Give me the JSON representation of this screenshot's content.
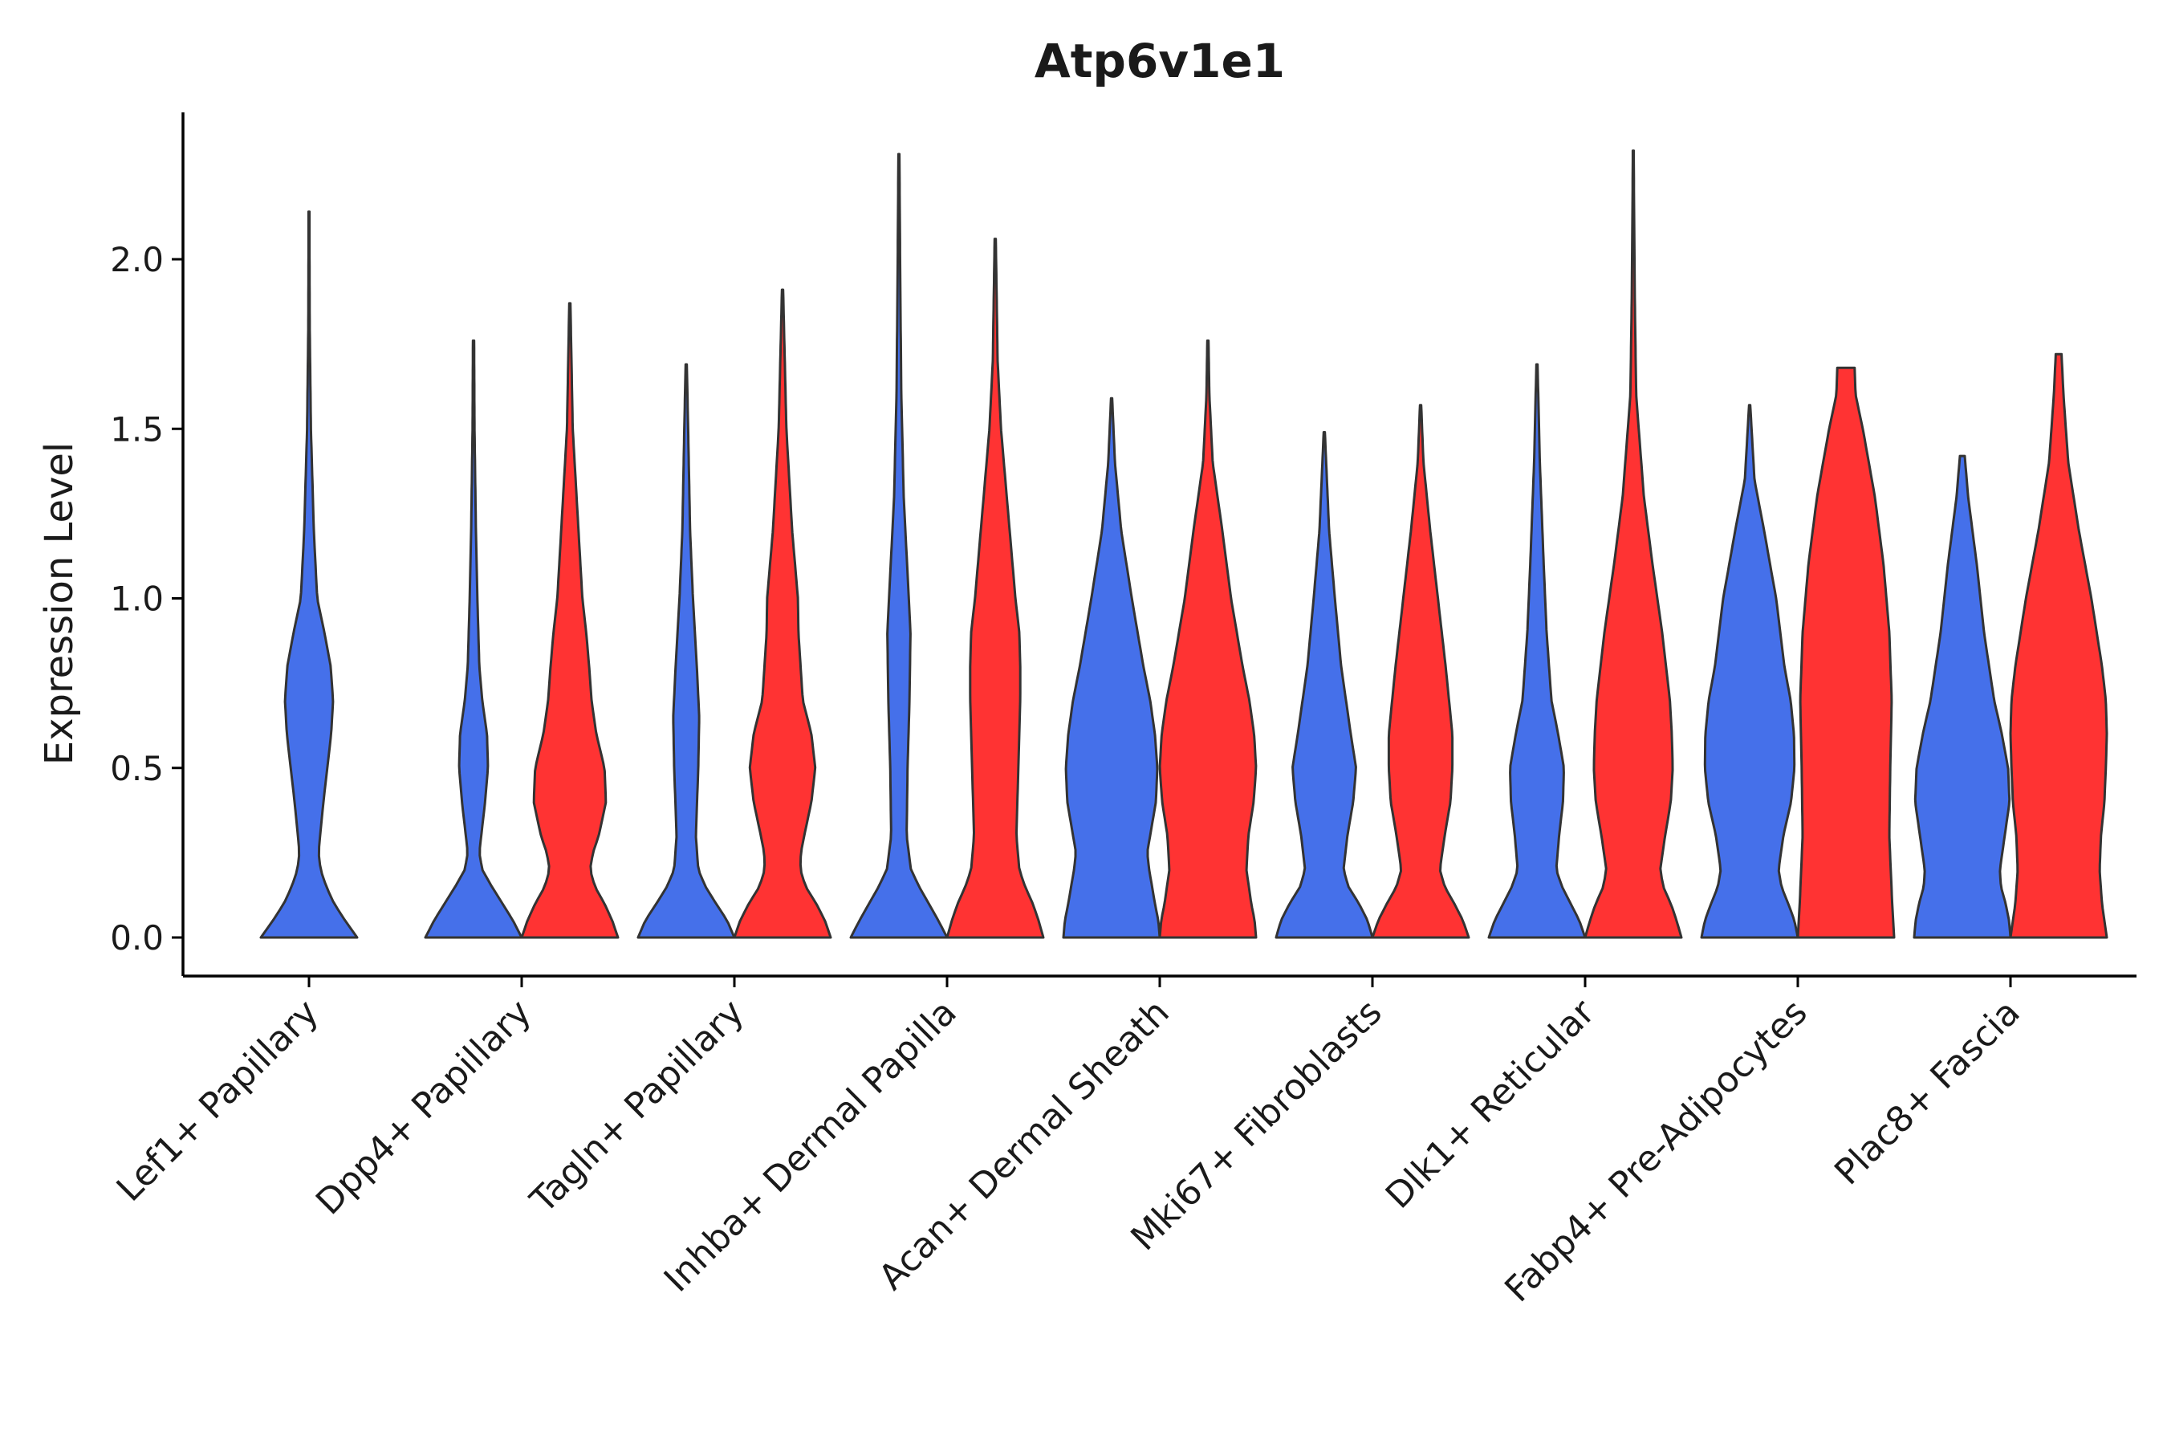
{
  "chart_data": {
    "type": "violin",
    "title": "Atp6v1e1",
    "xlabel": "",
    "ylabel": "Expression Level",
    "ylim": [
      -0.12,
      2.42
    ],
    "yticks": [
      "0.0",
      "0.5",
      "1.0",
      "1.5",
      "2.0"
    ],
    "ytick_values": [
      0.0,
      0.5,
      1.0,
      1.5,
      2.0
    ],
    "grid": false,
    "legend": "none",
    "colors": {
      "blue": "#4570EA",
      "red": "#FF3333",
      "outline": "#333333"
    },
    "categories": [
      "Lef1+ Papillary",
      "Dpp4+ Papillary",
      "Tagln+ Papillary",
      "Inhba+ Dermal Papilla",
      "Acan+ Dermal Sheath",
      "Mki67+ Fibroblasts",
      "Dlk1+ Reticular",
      "Fabp4+ Pre-Adipocytes",
      "Plac8+ Fascia"
    ],
    "violins": [
      {
        "category": 0,
        "color": "blue",
        "max": 2.14,
        "profile": [
          [
            0.0,
            1.0
          ],
          [
            0.05,
            0.75
          ],
          [
            0.1,
            0.52
          ],
          [
            0.15,
            0.36
          ],
          [
            0.2,
            0.24
          ],
          [
            0.25,
            0.2
          ],
          [
            0.3,
            0.23
          ],
          [
            0.4,
            0.3
          ],
          [
            0.5,
            0.38
          ],
          [
            0.6,
            0.46
          ],
          [
            0.7,
            0.5
          ],
          [
            0.8,
            0.45
          ],
          [
            0.9,
            0.32
          ],
          [
            1.0,
            0.17
          ],
          [
            1.2,
            0.1
          ],
          [
            1.5,
            0.04
          ],
          [
            1.8,
            0.015
          ],
          [
            2.14,
            0.008
          ]
        ]
      },
      {
        "category": 1,
        "color": "blue",
        "max": 1.76,
        "profile": [
          [
            0.0,
            1.0
          ],
          [
            0.05,
            0.82
          ],
          [
            0.1,
            0.6
          ],
          [
            0.15,
            0.38
          ],
          [
            0.2,
            0.18
          ],
          [
            0.25,
            0.12
          ],
          [
            0.3,
            0.16
          ],
          [
            0.4,
            0.24
          ],
          [
            0.5,
            0.3
          ],
          [
            0.6,
            0.28
          ],
          [
            0.7,
            0.18
          ],
          [
            0.8,
            0.12
          ],
          [
            1.0,
            0.08
          ],
          [
            1.2,
            0.05
          ],
          [
            1.5,
            0.02
          ],
          [
            1.76,
            0.012
          ]
        ]
      },
      {
        "category": 1,
        "color": "red",
        "max": 1.87,
        "profile": [
          [
            0.0,
            1.0
          ],
          [
            0.05,
            0.88
          ],
          [
            0.1,
            0.72
          ],
          [
            0.15,
            0.52
          ],
          [
            0.2,
            0.42
          ],
          [
            0.25,
            0.48
          ],
          [
            0.3,
            0.6
          ],
          [
            0.4,
            0.75
          ],
          [
            0.5,
            0.72
          ],
          [
            0.6,
            0.55
          ],
          [
            0.7,
            0.45
          ],
          [
            0.8,
            0.4
          ],
          [
            0.9,
            0.34
          ],
          [
            1.0,
            0.26
          ],
          [
            1.2,
            0.18
          ],
          [
            1.5,
            0.06
          ],
          [
            1.87,
            0.012
          ]
        ]
      },
      {
        "category": 2,
        "color": "blue",
        "max": 1.69,
        "profile": [
          [
            0.0,
            1.0
          ],
          [
            0.05,
            0.85
          ],
          [
            0.1,
            0.62
          ],
          [
            0.15,
            0.4
          ],
          [
            0.2,
            0.25
          ],
          [
            0.3,
            0.2
          ],
          [
            0.5,
            0.25
          ],
          [
            0.65,
            0.27
          ],
          [
            0.8,
            0.22
          ],
          [
            1.0,
            0.14
          ],
          [
            1.2,
            0.08
          ],
          [
            1.5,
            0.04
          ],
          [
            1.69,
            0.012
          ]
        ]
      },
      {
        "category": 2,
        "color": "red",
        "max": 1.91,
        "profile": [
          [
            0.0,
            1.0
          ],
          [
            0.05,
            0.88
          ],
          [
            0.1,
            0.7
          ],
          [
            0.15,
            0.48
          ],
          [
            0.2,
            0.37
          ],
          [
            0.25,
            0.38
          ],
          [
            0.3,
            0.45
          ],
          [
            0.4,
            0.6
          ],
          [
            0.5,
            0.68
          ],
          [
            0.6,
            0.6
          ],
          [
            0.7,
            0.42
          ],
          [
            0.9,
            0.33
          ],
          [
            1.0,
            0.32
          ],
          [
            1.2,
            0.2
          ],
          [
            1.5,
            0.08
          ],
          [
            1.91,
            0.012
          ]
        ]
      },
      {
        "category": 3,
        "color": "blue",
        "max": 2.31,
        "profile": [
          [
            0.0,
            1.0
          ],
          [
            0.05,
            0.82
          ],
          [
            0.1,
            0.62
          ],
          [
            0.15,
            0.42
          ],
          [
            0.2,
            0.25
          ],
          [
            0.3,
            0.16
          ],
          [
            0.5,
            0.18
          ],
          [
            0.7,
            0.22
          ],
          [
            0.9,
            0.24
          ],
          [
            1.1,
            0.17
          ],
          [
            1.3,
            0.1
          ],
          [
            1.6,
            0.05
          ],
          [
            1.9,
            0.03
          ],
          [
            2.31,
            0.01
          ]
        ]
      },
      {
        "category": 3,
        "color": "red",
        "max": 2.06,
        "profile": [
          [
            0.0,
            1.0
          ],
          [
            0.05,
            0.9
          ],
          [
            0.1,
            0.78
          ],
          [
            0.15,
            0.62
          ],
          [
            0.2,
            0.5
          ],
          [
            0.3,
            0.44
          ],
          [
            0.5,
            0.48
          ],
          [
            0.7,
            0.52
          ],
          [
            0.8,
            0.52
          ],
          [
            0.9,
            0.5
          ],
          [
            1.0,
            0.42
          ],
          [
            1.2,
            0.3
          ],
          [
            1.5,
            0.12
          ],
          [
            1.7,
            0.05
          ],
          [
            2.06,
            0.012
          ]
        ]
      },
      {
        "category": 4,
        "color": "blue",
        "max": 1.59,
        "profile": [
          [
            0.0,
            1.0
          ],
          [
            0.05,
            0.97
          ],
          [
            0.1,
            0.9
          ],
          [
            0.2,
            0.78
          ],
          [
            0.25,
            0.74
          ],
          [
            0.3,
            0.8
          ],
          [
            0.4,
            0.92
          ],
          [
            0.5,
            0.95
          ],
          [
            0.6,
            0.9
          ],
          [
            0.7,
            0.8
          ],
          [
            0.8,
            0.66
          ],
          [
            1.0,
            0.42
          ],
          [
            1.2,
            0.2
          ],
          [
            1.4,
            0.07
          ],
          [
            1.59,
            0.012
          ]
        ]
      },
      {
        "category": 4,
        "color": "red",
        "max": 1.76,
        "profile": [
          [
            0.0,
            1.0
          ],
          [
            0.05,
            0.97
          ],
          [
            0.1,
            0.9
          ],
          [
            0.2,
            0.8
          ],
          [
            0.3,
            0.84
          ],
          [
            0.4,
            0.95
          ],
          [
            0.5,
            1.0
          ],
          [
            0.6,
            0.96
          ],
          [
            0.7,
            0.86
          ],
          [
            0.8,
            0.72
          ],
          [
            1.0,
            0.48
          ],
          [
            1.2,
            0.3
          ],
          [
            1.4,
            0.1
          ],
          [
            1.6,
            0.03
          ],
          [
            1.76,
            0.012
          ]
        ]
      },
      {
        "category": 5,
        "color": "blue",
        "max": 1.49,
        "profile": [
          [
            0.0,
            1.0
          ],
          [
            0.05,
            0.9
          ],
          [
            0.1,
            0.72
          ],
          [
            0.15,
            0.5
          ],
          [
            0.2,
            0.4
          ],
          [
            0.3,
            0.48
          ],
          [
            0.4,
            0.6
          ],
          [
            0.5,
            0.66
          ],
          [
            0.6,
            0.55
          ],
          [
            0.8,
            0.35
          ],
          [
            1.0,
            0.22
          ],
          [
            1.2,
            0.1
          ],
          [
            1.49,
            0.012
          ]
        ]
      },
      {
        "category": 5,
        "color": "red",
        "max": 1.57,
        "profile": [
          [
            0.0,
            1.0
          ],
          [
            0.05,
            0.88
          ],
          [
            0.1,
            0.7
          ],
          [
            0.15,
            0.5
          ],
          [
            0.2,
            0.4
          ],
          [
            0.3,
            0.5
          ],
          [
            0.4,
            0.62
          ],
          [
            0.5,
            0.66
          ],
          [
            0.6,
            0.66
          ],
          [
            0.8,
            0.52
          ],
          [
            1.0,
            0.36
          ],
          [
            1.2,
            0.2
          ],
          [
            1.4,
            0.06
          ],
          [
            1.57,
            0.012
          ]
        ]
      },
      {
        "category": 6,
        "color": "blue",
        "max": 1.69,
        "profile": [
          [
            0.0,
            1.0
          ],
          [
            0.05,
            0.88
          ],
          [
            0.1,
            0.7
          ],
          [
            0.15,
            0.52
          ],
          [
            0.2,
            0.4
          ],
          [
            0.3,
            0.46
          ],
          [
            0.4,
            0.54
          ],
          [
            0.5,
            0.56
          ],
          [
            0.6,
            0.44
          ],
          [
            0.7,
            0.3
          ],
          [
            0.9,
            0.2
          ],
          [
            1.1,
            0.14
          ],
          [
            1.4,
            0.06
          ],
          [
            1.69,
            0.012
          ]
        ]
      },
      {
        "category": 6,
        "color": "red",
        "max": 2.32,
        "profile": [
          [
            0.0,
            1.0
          ],
          [
            0.05,
            0.9
          ],
          [
            0.1,
            0.78
          ],
          [
            0.15,
            0.62
          ],
          [
            0.2,
            0.56
          ],
          [
            0.3,
            0.66
          ],
          [
            0.4,
            0.78
          ],
          [
            0.5,
            0.82
          ],
          [
            0.6,
            0.8
          ],
          [
            0.7,
            0.76
          ],
          [
            0.9,
            0.6
          ],
          [
            1.1,
            0.4
          ],
          [
            1.3,
            0.22
          ],
          [
            1.6,
            0.06
          ],
          [
            1.9,
            0.03
          ],
          [
            2.32,
            0.008
          ]
        ]
      },
      {
        "category": 7,
        "color": "blue",
        "max": 1.57,
        "profile": [
          [
            0.0,
            1.0
          ],
          [
            0.05,
            0.93
          ],
          [
            0.1,
            0.8
          ],
          [
            0.15,
            0.66
          ],
          [
            0.2,
            0.6
          ],
          [
            0.3,
            0.7
          ],
          [
            0.4,
            0.86
          ],
          [
            0.5,
            0.93
          ],
          [
            0.6,
            0.92
          ],
          [
            0.7,
            0.85
          ],
          [
            0.8,
            0.72
          ],
          [
            1.0,
            0.55
          ],
          [
            1.2,
            0.3
          ],
          [
            1.35,
            0.1
          ],
          [
            1.57,
            0.012
          ]
        ]
      },
      {
        "category": 7,
        "color": "red",
        "max": 1.68,
        "profile": [
          [
            0.0,
            1.0
          ],
          [
            0.1,
            0.96
          ],
          [
            0.3,
            0.9
          ],
          [
            0.5,
            0.92
          ],
          [
            0.7,
            0.95
          ],
          [
            0.9,
            0.9
          ],
          [
            1.1,
            0.78
          ],
          [
            1.3,
            0.6
          ],
          [
            1.5,
            0.35
          ],
          [
            1.6,
            0.2
          ],
          [
            1.68,
            0.18
          ]
        ]
      },
      {
        "category": 8,
        "color": "blue",
        "max": 1.42,
        "profile": [
          [
            0.0,
            1.0
          ],
          [
            0.05,
            0.97
          ],
          [
            0.1,
            0.9
          ],
          [
            0.15,
            0.8
          ],
          [
            0.2,
            0.78
          ],
          [
            0.3,
            0.88
          ],
          [
            0.4,
            0.98
          ],
          [
            0.5,
            0.95
          ],
          [
            0.6,
            0.82
          ],
          [
            0.7,
            0.66
          ],
          [
            0.9,
            0.45
          ],
          [
            1.1,
            0.3
          ],
          [
            1.3,
            0.12
          ],
          [
            1.42,
            0.05
          ]
        ]
      },
      {
        "category": 8,
        "color": "red",
        "max": 1.72,
        "profile": [
          [
            0.0,
            1.0
          ],
          [
            0.05,
            0.95
          ],
          [
            0.1,
            0.9
          ],
          [
            0.2,
            0.85
          ],
          [
            0.3,
            0.88
          ],
          [
            0.4,
            0.95
          ],
          [
            0.5,
            0.98
          ],
          [
            0.6,
            1.0
          ],
          [
            0.7,
            0.98
          ],
          [
            0.8,
            0.9
          ],
          [
            1.0,
            0.68
          ],
          [
            1.2,
            0.42
          ],
          [
            1.4,
            0.2
          ],
          [
            1.6,
            0.1
          ],
          [
            1.72,
            0.06
          ]
        ]
      }
    ]
  }
}
